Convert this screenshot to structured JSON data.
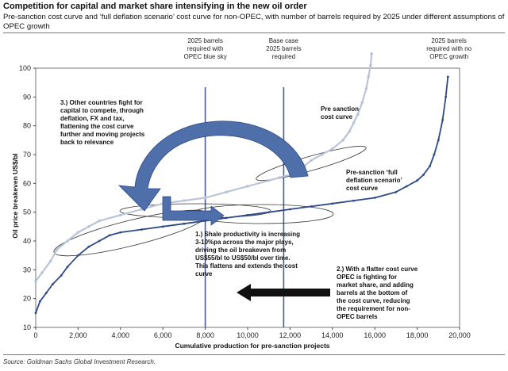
{
  "header": {
    "title": "Competition for capital and market share intensifying in the new oil order",
    "subtitle": "Pre-sanction cost curve and ‘full deflation scenario’ cost curve for non-OPEC, with number of barrels required by 2025 under different assumptions of OPEC growth"
  },
  "footer": {
    "source": "Source: Goldman Sachs Global Investment Research."
  },
  "colors": {
    "pre_sanction": "#b9c4d8",
    "full_deflation": "#2e4a86",
    "vlines": "#4a5d8a",
    "arrow_fill": "#4f6fab",
    "black_arrow": "#111111"
  },
  "chart_data": {
    "type": "line",
    "title": "",
    "xlabel": "Cumulative production for pre-sanction projects",
    "ylabel": "Oil price breakeven US$/bl",
    "xlim": [
      0,
      20000
    ],
    "ylim": [
      10,
      100
    ],
    "x_ticks": [
      "0",
      "2,000",
      "4,000",
      "6,000",
      "8,000",
      "10,000",
      "12,000",
      "14,000",
      "16,000",
      "18,000",
      "20,000"
    ],
    "x_tick_values": [
      0,
      2000,
      4000,
      6000,
      8000,
      10000,
      12000,
      14000,
      16000,
      18000,
      20000
    ],
    "y_ticks": [
      "10",
      "20",
      "30",
      "40",
      "50",
      "60",
      "70",
      "80",
      "90",
      "100"
    ],
    "y_tick_values": [
      10,
      20,
      30,
      40,
      50,
      60,
      70,
      80,
      90,
      100
    ],
    "series": [
      {
        "name": "Pre sanction cost curve",
        "x": [
          0,
          300,
          700,
          1000,
          1500,
          2000,
          2500,
          3000,
          4000,
          5000,
          6000,
          7000,
          8000,
          9000,
          10000,
          11000,
          11500,
          12000,
          12500,
          13000,
          13500,
          14000,
          14500,
          14800,
          15000,
          15200,
          15400,
          15600,
          15700,
          15800,
          15850
        ],
        "y": [
          26,
          29,
          33,
          37,
          40,
          43,
          45,
          47,
          49,
          51,
          53,
          54,
          55,
          57,
          59,
          61,
          62,
          63,
          65,
          68,
          70,
          72,
          75,
          78,
          81,
          84,
          88,
          93,
          97,
          101,
          105
        ]
      },
      {
        "name": "Pre-sanction ‘full deflation scenario’ cost curve",
        "x": [
          0,
          200,
          500,
          800,
          1200,
          1500,
          2000,
          2500,
          3000,
          3500,
          4000,
          5000,
          6000,
          7000,
          8000,
          9000,
          10000,
          11000,
          12000,
          13000,
          14000,
          15000,
          16000,
          17000,
          17500,
          18000,
          18300,
          18600,
          18800,
          19000,
          19200,
          19350,
          19450
        ],
        "y": [
          15,
          19,
          22,
          25,
          28,
          31,
          35,
          38,
          40,
          42,
          43,
          44,
          45,
          46,
          47,
          48,
          49,
          50,
          51,
          52,
          53,
          54,
          55,
          57,
          59,
          61,
          63,
          66,
          70,
          75,
          82,
          90,
          97
        ]
      }
    ],
    "vertical_lines": [
      {
        "x": 8000,
        "label": [
          "2025 barrels",
          "required with",
          "OPEC blue sky"
        ]
      },
      {
        "x": 11700,
        "label": [
          "Base case",
          "2025 barrels",
          "required"
        ]
      },
      {
        "x": 19500,
        "label": [
          "2025 barrels",
          "required with no",
          "OPEC growth"
        ]
      }
    ],
    "annotations": {
      "pre_sanction_label": [
        "Pre sanction",
        "cost curve"
      ],
      "full_deflation_label": [
        "Pre-sanction ‘full",
        "deflation scenario’",
        "cost curve"
      ],
      "note1": [
        "1.) Shale productivity is increasing",
        "3-10%pa across the major plays,",
        "driving the oil breakeven from",
        "US$55/bl to US$50/bl over time.",
        "This flattens and extends the cost",
        "curve"
      ],
      "note2": [
        "2.) With a flatter cost curve",
        "OPEC is fighting for",
        "market share, and adding",
        "barrels at the bottom of",
        "the cost curve, reducing",
        "the requirement for non-",
        "OPEC barrels"
      ],
      "note3": [
        "3.) Other countries fight for",
        "capital to compete, through",
        "deflation, FX and tax,",
        "flattening the cost curve",
        "further and moving projects",
        "back to relevance"
      ]
    }
  }
}
